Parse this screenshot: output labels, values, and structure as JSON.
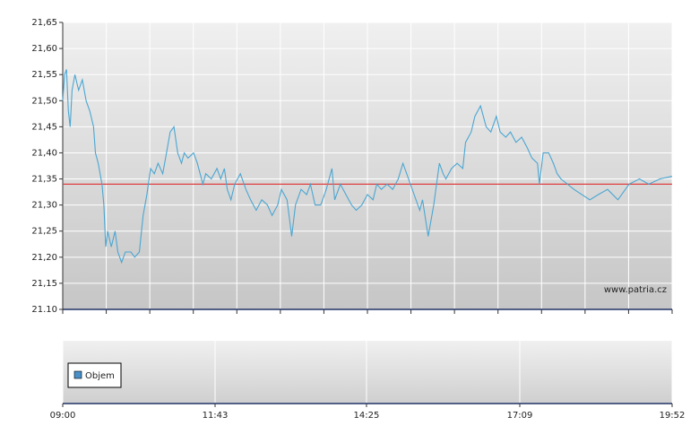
{
  "chart_data": [
    {
      "type": "line",
      "annotation": "www.patria.cz",
      "x": [
        "09:00",
        "09:02",
        "09:04",
        "09:06",
        "09:08",
        "09:10",
        "09:13",
        "09:17",
        "09:21",
        "09:25",
        "09:29",
        "09:33",
        "09:35",
        "09:38",
        "09:42",
        "09:44",
        "09:46",
        "09:48",
        "09:52",
        "09:56",
        "09:59",
        "10:03",
        "10:07",
        "10:13",
        "10:17",
        "10:22",
        "10:26",
        "10:30",
        "10:34",
        "10:38",
        "10:42",
        "10:47",
        "10:51",
        "10:55",
        "10:59",
        "11:03",
        "11:07",
        "11:10",
        "11:14",
        "11:20",
        "11:24",
        "11:30",
        "11:33",
        "11:39",
        "11:45",
        "11:49",
        "11:53",
        "11:56",
        "12:00",
        "12:04",
        "12:10",
        "12:16",
        "12:21",
        "12:27",
        "12:33",
        "12:39",
        "12:44",
        "12:50",
        "12:54",
        "13:00",
        "13:05",
        "13:09",
        "13:15",
        "13:21",
        "13:25",
        "13:30",
        "13:36",
        "13:42",
        "13:48",
        "13:51",
        "13:57",
        "14:03",
        "14:09",
        "14:14",
        "14:20",
        "14:26",
        "14:32",
        "14:36",
        "14:41",
        "14:47",
        "14:53",
        "14:59",
        "15:04",
        "15:10",
        "15:16",
        "15:22",
        "15:25",
        "15:31",
        "15:37",
        "15:43",
        "15:47",
        "15:50",
        "15:56",
        "16:02",
        "16:08",
        "16:11",
        "16:17",
        "16:21",
        "16:27",
        "16:33",
        "16:38",
        "16:44",
        "16:48",
        "16:54",
        "16:59",
        "17:05",
        "17:11",
        "17:17",
        "17:22",
        "17:28",
        "17:30",
        "17:34",
        "17:40",
        "17:45",
        "17:49",
        "17:53",
        "18:07",
        "18:24",
        "18:33",
        "18:43",
        "18:54",
        "19:06",
        "19:17",
        "19:27",
        "19:39",
        "19:52"
      ],
      "series": [
        {
          "color": "#4aa6d2",
          "values": [
            21.5,
            21.55,
            21.56,
            21.48,
            21.45,
            21.52,
            21.55,
            21.52,
            21.54,
            21.5,
            21.48,
            21.45,
            21.4,
            21.38,
            21.34,
            21.3,
            21.22,
            21.25,
            21.22,
            21.25,
            21.21,
            21.19,
            21.21,
            21.21,
            21.2,
            21.21,
            21.28,
            21.32,
            21.37,
            21.36,
            21.38,
            21.36,
            21.4,
            21.44,
            21.45,
            21.4,
            21.38,
            21.4,
            21.39,
            21.4,
            21.38,
            21.34,
            21.36,
            21.35,
            21.37,
            21.35,
            21.37,
            21.33,
            21.31,
            21.34,
            21.36,
            21.33,
            21.31,
            21.29,
            21.31,
            21.3,
            21.28,
            21.3,
            21.33,
            21.31,
            21.24,
            21.3,
            21.33,
            21.32,
            21.34,
            21.3,
            21.3,
            21.33,
            21.37,
            21.31,
            21.34,
            21.32,
            21.3,
            21.29,
            21.3,
            21.32,
            21.31,
            21.34,
            21.33,
            21.34,
            21.33,
            21.35,
            21.38,
            21.35,
            21.32,
            21.29,
            21.31,
            21.24,
            21.3,
            21.38,
            21.36,
            21.35,
            21.37,
            21.38,
            21.37,
            21.42,
            21.44,
            21.47,
            21.49,
            21.45,
            21.44,
            21.47,
            21.44,
            21.43,
            21.44,
            21.42,
            21.43,
            21.41,
            21.39,
            21.38,
            21.34,
            21.4,
            21.4,
            21.38,
            21.36,
            21.35,
            21.33,
            21.31,
            21.32,
            21.33,
            21.31,
            21.34,
            21.35,
            21.34,
            21.35,
            21.355
          ]
        }
      ],
      "reference_line": {
        "value": 21.34,
        "color": "#e04040"
      },
      "xlim": [
        "09:00",
        "19:52"
      ],
      "ylim": [
        21.1,
        21.65
      ],
      "yticks": [
        {
          "value": 21.1,
          "label": "21.10"
        },
        {
          "value": 21.15,
          "label": "21,15"
        },
        {
          "value": 21.2,
          "label": "21,20"
        },
        {
          "value": 21.25,
          "label": "21,25"
        },
        {
          "value": 21.3,
          "label": "21,30"
        },
        {
          "value": 21.35,
          "label": "21,35"
        },
        {
          "value": 21.4,
          "label": "21,40"
        },
        {
          "value": 21.45,
          "label": "21,45"
        },
        {
          "value": 21.5,
          "label": "21,50"
        },
        {
          "value": 21.55,
          "label": "21,55"
        },
        {
          "value": 21.6,
          "label": "21,60"
        },
        {
          "value": 21.65,
          "label": "21,65"
        }
      ],
      "grid": true
    },
    {
      "type": "bar",
      "series": [
        {
          "name": "Objem",
          "color": "#4a90c8",
          "values": []
        }
      ],
      "xlim": [
        "09:00",
        "19:52"
      ],
      "xticks": [
        "09:00",
        "11:43",
        "14:25",
        "17:09",
        "19:52"
      ],
      "grid": true
    }
  ]
}
